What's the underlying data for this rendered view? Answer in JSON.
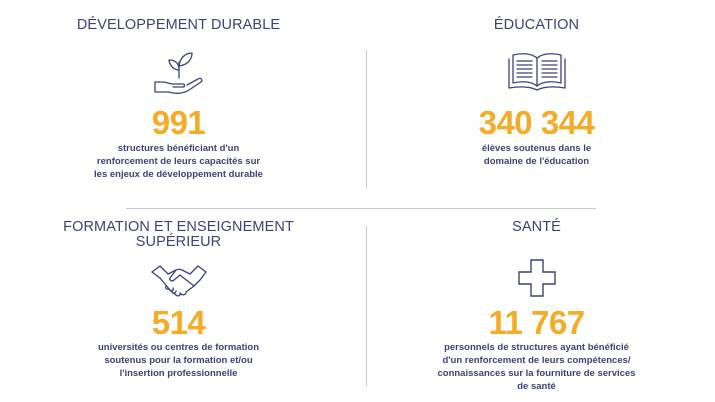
{
  "sections": [
    {
      "title": "DÉVELOPPEMENT DURABLE",
      "icon": "plant-in-hand-icon",
      "number": "991",
      "description_lines": [
        "structures bénéficiant d'un",
        "renforcement de leurs capacités sur",
        "les enjeux de développement durable"
      ]
    },
    {
      "title": "ÉDUCATION",
      "icon": "open-book-icon",
      "number": "340 344",
      "description_lines": [
        "élèves soutenus dans le",
        "domaine de l'éducation"
      ]
    },
    {
      "title_lines": [
        "FORMATION ET ENSEIGNEMENT",
        "SUPÉRIEUR"
      ],
      "icon": "handshake-icon",
      "number": "514",
      "description_lines": [
        "universités ou centres de formation",
        "soutenus pour la formation et/ou",
        "l'insertion professionnelle"
      ]
    },
    {
      "title": "SANTÉ",
      "icon": "medical-cross-icon",
      "number": "11 767",
      "description_lines": [
        "personnels de structures ayant bénéficié",
        "d'un renforcement de leurs compétences/",
        "connaissances sur la fourniture de services",
        "de santé"
      ]
    }
  ],
  "colors": {
    "title": "#3e4178",
    "number": "#f4ac28",
    "divider": "#c8c9d6",
    "icon": "#3e4178"
  }
}
